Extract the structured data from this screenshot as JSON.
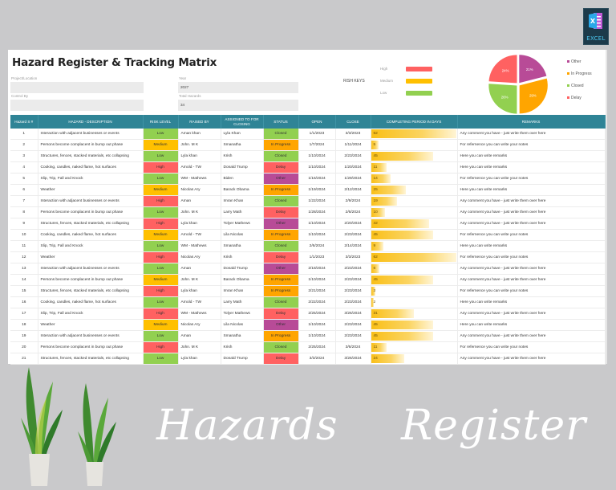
{
  "brand_logo": {
    "label": "EXCEL",
    "icon": "excel-icon"
  },
  "sheet": {
    "title": "Hazard Register & Tracking Matrix",
    "fields": [
      {
        "label": "Project/Location",
        "value": ""
      },
      {
        "label": "Control By",
        "value": ""
      },
      {
        "label": "Year",
        "value": "2027"
      },
      {
        "label": "Total Hazards",
        "value": "34"
      }
    ],
    "risk_keys": {
      "title": "RISH KEYS",
      "items": [
        {
          "label": "High",
          "color": "#ff6161"
        },
        {
          "label": "Medium",
          "color": "#ffc000"
        },
        {
          "label": "Low",
          "color": "#92d050"
        }
      ]
    }
  },
  "chart_data": {
    "type": "pie",
    "title": "",
    "categories": [
      "Other",
      "In Progress",
      "Closed",
      "Delay"
    ],
    "values": [
      21,
      29,
      26,
      24
    ],
    "colors": [
      "#b84b97",
      "#ffa500",
      "#92d050",
      "#ff6161"
    ],
    "unit": "%",
    "legend_position": "right"
  },
  "colors": {
    "header_bg": "#2f8496",
    "high": "#ff6161",
    "medium": "#ffc000",
    "low": "#92d050",
    "closed": "#92d050",
    "in_progress": "#ffa500",
    "delay": "#ff6161",
    "other": "#b84b97",
    "bar": "#f9bf17"
  },
  "table": {
    "columns": [
      "Hazard S #",
      "HAZARD - DESCRIPTION",
      "RISK LEVEL",
      "RAISED BY",
      "ASSIGNED TO FOR CLOSING",
      "STATUS",
      "OPEN",
      "CLOSE",
      "COMPLETING PERIOD IN DAYS",
      "REMARKS"
    ],
    "rows": [
      {
        "n": "1",
        "desc": "Interaction with adjacent  businesses or  events",
        "risk": "Low",
        "raised": "Aman khan",
        "assigned": "Lyla Khan",
        "status": "Closed",
        "open": "1/1/2023",
        "close": "3/3/2023",
        "days": "62",
        "remarks": "Any comment you have - just write them over here"
      },
      {
        "n": "2",
        "desc": "Persons become complacent in bump out phase",
        "risk": "Medium",
        "raised": "John. M K",
        "assigned": "Smanatha",
        "status": "In Progress",
        "open": "1/7/2024",
        "close": "1/11/2024",
        "days": "5",
        "remarks": "For refernence you can write your notes"
      },
      {
        "n": "3",
        "desc": "Structures, fences, stacked materials, etc collapsing",
        "risk": "Low",
        "raised": "Lyla khan",
        "assigned": "Krish",
        "status": "Closed",
        "open": "1/10/2024",
        "close": "2/23/2024",
        "days": "45",
        "remarks": "Here you can write remarks"
      },
      {
        "n": "4",
        "desc": "Cooking, candles, naked flame, hot surfaces",
        "risk": "High",
        "raised": "Arnold - TW",
        "assigned": "Donald Trump",
        "status": "Delay",
        "open": "1/10/2024",
        "close": "1/20/2024",
        "days": "11",
        "remarks": "Here you can write remarks"
      },
      {
        "n": "5",
        "desc": "Slip, Trip, Fall and Knock",
        "risk": "Low",
        "raised": "WM - Mathews",
        "assigned": "Biden",
        "status": "Other",
        "open": "1/16/2024",
        "close": "1/29/2024",
        "days": "14",
        "remarks": "For refernence you can write your notes"
      },
      {
        "n": "6",
        "desc": "Weather",
        "risk": "Medium",
        "raised": "Nicolas Ary",
        "assigned": "Barack Obama",
        "status": "In Progress",
        "open": "1/19/2024",
        "close": "2/12/2024",
        "days": "25",
        "remarks": "Here you can write remarks"
      },
      {
        "n": "7",
        "desc": "Interaction with adjacent  businesses or  events",
        "risk": "High",
        "raised": "Aman",
        "assigned": "Imran Khan",
        "status": "Closed",
        "open": "1/22/2024",
        "close": "2/9/2024",
        "days": "19",
        "remarks": "Any comment you have - just write them over here"
      },
      {
        "n": "8",
        "desc": "Persons become complacent in bump out phase",
        "risk": "Low",
        "raised": "John. M K",
        "assigned": "Larry Math",
        "status": "Delay",
        "open": "1/28/2024",
        "close": "2/6/2024",
        "days": "10",
        "remarks": "Any comment you have - just write them over here"
      },
      {
        "n": "9",
        "desc": "Structures, fences, stacked materials, etc collapsing",
        "risk": "High",
        "raised": "Lyla khan",
        "assigned": "Tolyer Mathews",
        "status": "Other",
        "open": "1/10/2024",
        "close": "2/20/2024",
        "days": "42",
        "remarks": "Any comment you have - just write them over here"
      },
      {
        "n": "10",
        "desc": "Cooking, candles, naked flame, hot surfaces",
        "risk": "Medium",
        "raised": "Arnold - TW",
        "assigned": "Lila Nicolas",
        "status": "In Progress",
        "open": "1/10/2024",
        "close": "2/23/2024",
        "days": "45",
        "remarks": "For refernence you can write your notes"
      },
      {
        "n": "11",
        "desc": "Slip, Trip, Fall and Knock",
        "risk": "Low",
        "raised": "WM - Mathews",
        "assigned": "Smanatha",
        "status": "Closed",
        "open": "2/6/2024",
        "close": "2/14/2024",
        "days": "9",
        "remarks": "Here you can write remarks"
      },
      {
        "n": "12",
        "desc": "Weather",
        "risk": "High",
        "raised": "Nicolas Ary",
        "assigned": "Krish",
        "status": "Delay",
        "open": "1/1/2023",
        "close": "3/3/2023",
        "days": "62",
        "remarks": "For refernence you can write your notes"
      },
      {
        "n": "13",
        "desc": "Interaction with adjacent  businesses or  events",
        "risk": "Low",
        "raised": "Aman",
        "assigned": "Donald Trump",
        "status": "Other",
        "open": "2/18/2024",
        "close": "2/23/2024",
        "days": "6",
        "remarks": "Any comment you have - just write them over here"
      },
      {
        "n": "14",
        "desc": "Persons become complacent in bump out phase",
        "risk": "Medium",
        "raised": "John. M K",
        "assigned": "Barack Obama",
        "status": "In Progress",
        "open": "1/10/2024",
        "close": "2/23/2024",
        "days": "45",
        "remarks": "Any comment you have - just write them over here",
        "dropdown": true
      },
      {
        "n": "15",
        "desc": "Structures, fences, stacked materials, etc collapsing",
        "risk": "High",
        "raised": "Lyla khan",
        "assigned": "Imran Khan",
        "status": "In Progress",
        "open": "2/21/2024",
        "close": "2/23/2024",
        "days": "3",
        "remarks": "For refernence you can write your notes"
      },
      {
        "n": "16",
        "desc": "Cooking, candles, naked flame, hot surfaces",
        "risk": "Low",
        "raised": "Arnold - TW",
        "assigned": "Larry Math",
        "status": "Closed",
        "open": "2/22/2024",
        "close": "2/23/2024",
        "days": "2",
        "remarks": "Here you can write remarks"
      },
      {
        "n": "17",
        "desc": "Slip, Trip, Fall and Knock",
        "risk": "High",
        "raised": "WM - Mathews",
        "assigned": "Tolyer Mathews",
        "status": "Delay",
        "open": "2/25/2024",
        "close": "3/26/2024",
        "days": "31",
        "remarks": "Any comment you have - just write them over here"
      },
      {
        "n": "18",
        "desc": "Weather",
        "risk": "Medium",
        "raised": "Nicolas Ary",
        "assigned": "Lila Nicolas",
        "status": "Other",
        "open": "1/10/2024",
        "close": "2/23/2024",
        "days": "45",
        "remarks": "Here you can write remarks"
      },
      {
        "n": "19",
        "desc": "Interaction with adjacent  businesses or  events",
        "risk": "Low",
        "raised": "Aman",
        "assigned": "Smanatha",
        "status": "In Progress",
        "open": "1/10/2024",
        "close": "2/23/2024",
        "days": "45",
        "remarks": "Any comment you have - just write them over here"
      },
      {
        "n": "20",
        "desc": "Persons become complacent in bump out phase",
        "risk": "High",
        "raised": "John. M K",
        "assigned": "Krish",
        "status": "Closed",
        "open": "2/25/2024",
        "close": "3/6/2024",
        "days": "11",
        "remarks": "For refernence you can write your notes"
      },
      {
        "n": "21",
        "desc": "Structures, fences, stacked materials, etc collapsing",
        "risk": "Low",
        "raised": "Lyla khan",
        "assigned": "Donald Trump",
        "status": "Delay",
        "open": "3/3/2024",
        "close": "3/26/2024",
        "days": "24",
        "remarks": "Any comment you have - just write them over here"
      }
    ]
  },
  "banner": {
    "word1": "Hazards",
    "word2": "Register"
  }
}
